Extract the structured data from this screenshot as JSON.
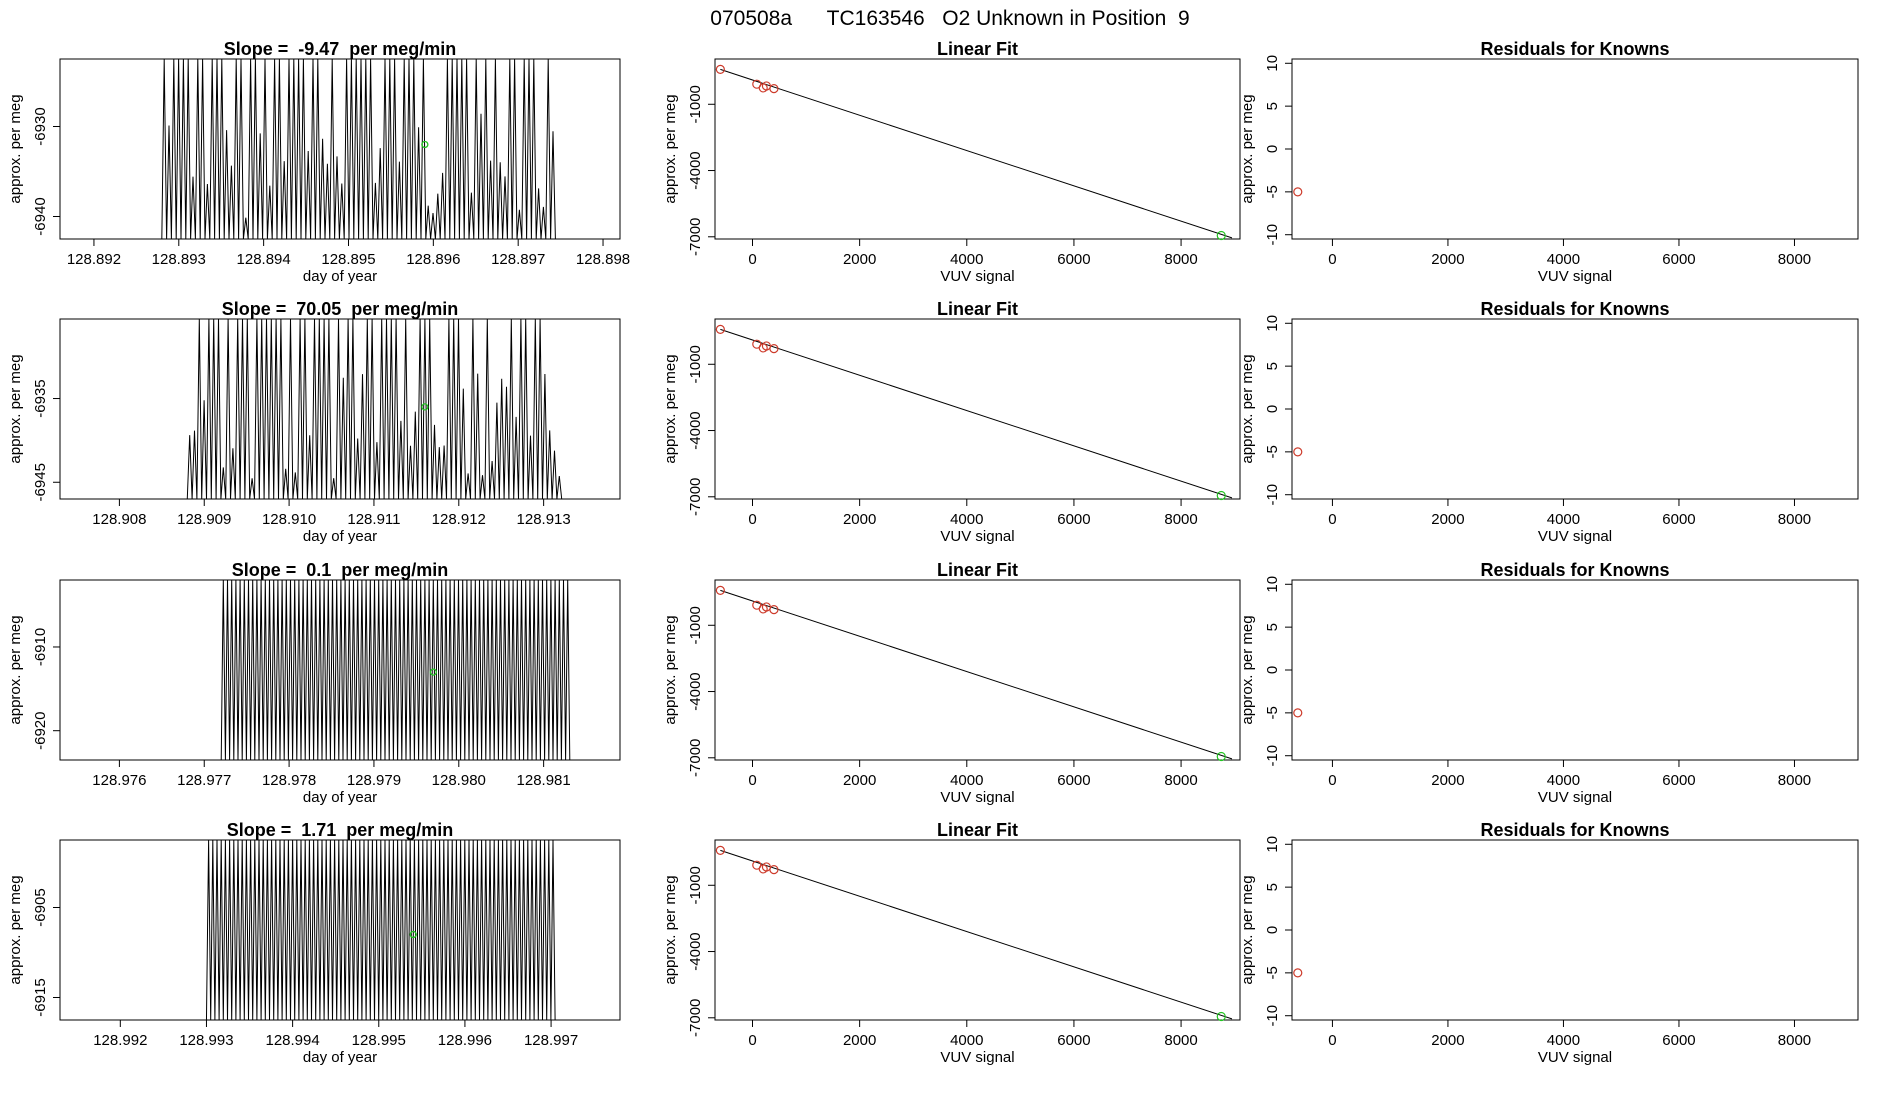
{
  "figure_title": "070508a      TC163546   O2 Unknown in Position  9",
  "colors": {
    "known": "#cd3b2b",
    "unknown": "#22c422",
    "line": "#000000",
    "axis": "#000000"
  },
  "chart_data": [
    {
      "id": "row1-timeseries",
      "type": "line",
      "row": 0,
      "col": 0,
      "title": "Slope =  -9.47  per meg/min",
      "xlabel": "day of year",
      "ylabel": "approx. per meg",
      "xlim": [
        128.8916,
        128.8982
      ],
      "ylim": [
        -6942.5,
        -6922.5
      ],
      "xticks": [
        "128.892",
        "128.893",
        "128.894",
        "128.895",
        "128.896",
        "128.897",
        "128.898"
      ],
      "yticks": [
        "-6930",
        "-6940"
      ],
      "trace": {
        "start": 128.8928,
        "end": 128.8974,
        "seed": 7,
        "density": 0.55,
        "high": -6922.5,
        "low": -6942.5
      },
      "marker": {
        "x": 128.8959,
        "y": -6932
      }
    },
    {
      "id": "row1-fit",
      "type": "scatter",
      "row": 0,
      "col": 1,
      "title": "Linear Fit",
      "xlabel": "VUV signal",
      "ylabel": "approx. per meg",
      "xlim": [
        -700,
        9100
      ],
      "ylim": [
        -7100,
        1050
      ],
      "xticks": [
        "0",
        "2000",
        "4000",
        "6000",
        "8000"
      ],
      "yticks": [
        "-1000",
        "-4000",
        "-7000"
      ],
      "knowns": [
        {
          "x": -600,
          "y": 580
        },
        {
          "x": 80,
          "y": -90
        },
        {
          "x": 200,
          "y": -260
        },
        {
          "x": 260,
          "y": -170
        },
        {
          "x": 400,
          "y": -290
        }
      ],
      "unknown": {
        "x": 8750,
        "y": -6940
      },
      "fit_line": {
        "x0": -600,
        "y0": 580,
        "x1": 8950,
        "y1": -7050
      }
    },
    {
      "id": "row1-resid",
      "type": "scatter",
      "row": 0,
      "col": 2,
      "title": "Residuals for Knowns",
      "xlabel": "VUV signal",
      "ylabel": "approx. per meg",
      "xlim": [
        -700,
        9100
      ],
      "ylim": [
        -10.5,
        10.5
      ],
      "xticks": [
        "0",
        "2000",
        "4000",
        "6000",
        "8000"
      ],
      "yticks": [
        "-10",
        "-5",
        "0",
        "5",
        "10"
      ],
      "points": [
        {
          "x": -600,
          "y": -5
        }
      ]
    },
    {
      "id": "row2-timeseries",
      "type": "line",
      "row": 1,
      "col": 0,
      "title": "Slope =  70.05  per meg/min",
      "xlabel": "day of year",
      "ylabel": "approx. per meg",
      "xlim": [
        128.9073,
        128.9139
      ],
      "ylim": [
        -6947,
        -6925.5
      ],
      "xticks": [
        "128.908",
        "128.909",
        "128.910",
        "128.911",
        "128.912",
        "128.913"
      ],
      "yticks": [
        "-6935",
        "-6945"
      ],
      "trace": {
        "start": 128.9088,
        "end": 128.9132,
        "seed": 13,
        "density": 0.6,
        "high": -6925.5,
        "low": -6947
      },
      "marker": {
        "x": 128.9116,
        "y": -6936
      }
    },
    {
      "id": "row2-fit",
      "type": "scatter",
      "row": 1,
      "col": 1,
      "title": "Linear Fit",
      "xlabel": "VUV signal",
      "ylabel": "approx. per meg",
      "xlim": [
        -700,
        9100
      ],
      "ylim": [
        -7100,
        1050
      ],
      "xticks": [
        "0",
        "2000",
        "4000",
        "6000",
        "8000"
      ],
      "yticks": [
        "-1000",
        "-4000",
        "-7000"
      ],
      "knowns": [
        {
          "x": -600,
          "y": 580
        },
        {
          "x": 80,
          "y": -90
        },
        {
          "x": 200,
          "y": -260
        },
        {
          "x": 260,
          "y": -170
        },
        {
          "x": 400,
          "y": -290
        }
      ],
      "unknown": {
        "x": 8750,
        "y": -6940
      },
      "fit_line": {
        "x0": -600,
        "y0": 580,
        "x1": 8950,
        "y1": -7050
      }
    },
    {
      "id": "row2-resid",
      "type": "scatter",
      "row": 1,
      "col": 2,
      "title": "Residuals for Knowns",
      "xlabel": "VUV signal",
      "ylabel": "approx. per meg",
      "xlim": [
        -700,
        9100
      ],
      "ylim": [
        -10.5,
        10.5
      ],
      "xticks": [
        "0",
        "2000",
        "4000",
        "6000",
        "8000"
      ],
      "yticks": [
        "-10",
        "-5",
        "0",
        "5",
        "10"
      ],
      "points": [
        {
          "x": -600,
          "y": -5
        }
      ]
    },
    {
      "id": "row3-timeseries",
      "type": "line",
      "row": 2,
      "col": 0,
      "title": "Slope =  0.1  per meg/min",
      "xlabel": "day of year",
      "ylabel": "approx. per meg",
      "xlim": [
        128.9753,
        128.9819
      ],
      "ylim": [
        -6923.5,
        -6902
      ],
      "xticks": [
        "128.976",
        "128.977",
        "128.978",
        "128.979",
        "128.980",
        "128.981"
      ],
      "yticks": [
        "-6910",
        "-6920"
      ],
      "trace": {
        "start": 128.9772,
        "end": 128.9813,
        "seed": 21,
        "density": 1.0,
        "high": -6902,
        "low": -6923.5
      },
      "marker": {
        "x": 128.9797,
        "y": -6913
      }
    },
    {
      "id": "row3-fit",
      "type": "scatter",
      "row": 2,
      "col": 1,
      "title": "Linear Fit",
      "xlabel": "VUV signal",
      "ylabel": "approx. per meg",
      "xlim": [
        -700,
        9100
      ],
      "ylim": [
        -7100,
        1050
      ],
      "xticks": [
        "0",
        "2000",
        "4000",
        "6000",
        "8000"
      ],
      "yticks": [
        "-1000",
        "-4000",
        "-7000"
      ],
      "knowns": [
        {
          "x": -600,
          "y": 580
        },
        {
          "x": 80,
          "y": -90
        },
        {
          "x": 200,
          "y": -260
        },
        {
          "x": 260,
          "y": -170
        },
        {
          "x": 400,
          "y": -290
        }
      ],
      "unknown": {
        "x": 8750,
        "y": -6940
      },
      "fit_line": {
        "x0": -600,
        "y0": 580,
        "x1": 8950,
        "y1": -7050
      }
    },
    {
      "id": "row3-resid",
      "type": "scatter",
      "row": 2,
      "col": 2,
      "title": "Residuals for Knowns",
      "xlabel": "VUV signal",
      "ylabel": "approx. per meg",
      "xlim": [
        -700,
        9100
      ],
      "ylim": [
        -10.5,
        10.5
      ],
      "xticks": [
        "0",
        "2000",
        "4000",
        "6000",
        "8000"
      ],
      "yticks": [
        "-10",
        "-5",
        "0",
        "5",
        "10"
      ],
      "points": [
        {
          "x": -600,
          "y": -5
        }
      ]
    },
    {
      "id": "row4-timeseries",
      "type": "line",
      "row": 3,
      "col": 0,
      "title": "Slope =  1.71  per meg/min",
      "xlabel": "day of year",
      "ylabel": "approx. per meg",
      "xlim": [
        128.9913,
        128.9978
      ],
      "ylim": [
        -6917.5,
        -6897.5
      ],
      "xticks": [
        "128.992",
        "128.993",
        "128.994",
        "128.995",
        "128.996",
        "128.997"
      ],
      "yticks": [
        "-6905",
        "-6915"
      ],
      "trace": {
        "start": 128.993,
        "end": 128.997,
        "seed": 33,
        "density": 1.0,
        "high": -6897.5,
        "low": -6917.5
      },
      "marker": {
        "x": 128.9954,
        "y": -6908
      }
    },
    {
      "id": "row4-fit",
      "type": "scatter",
      "row": 3,
      "col": 1,
      "title": "Linear Fit",
      "xlabel": "VUV signal",
      "ylabel": "approx. per meg",
      "xlim": [
        -700,
        9100
      ],
      "ylim": [
        -7100,
        1050
      ],
      "xticks": [
        "0",
        "2000",
        "4000",
        "6000",
        "8000"
      ],
      "yticks": [
        "-1000",
        "-4000",
        "-7000"
      ],
      "knowns": [
        {
          "x": -600,
          "y": 580
        },
        {
          "x": 80,
          "y": -90
        },
        {
          "x": 200,
          "y": -260
        },
        {
          "x": 260,
          "y": -170
        },
        {
          "x": 400,
          "y": -290
        }
      ],
      "unknown": {
        "x": 8750,
        "y": -6940
      },
      "fit_line": {
        "x0": -600,
        "y0": 580,
        "x1": 8950,
        "y1": -7050
      }
    },
    {
      "id": "row4-resid",
      "type": "scatter",
      "row": 3,
      "col": 2,
      "title": "Residuals for Knowns",
      "xlabel": "VUV signal",
      "ylabel": "approx. per meg",
      "xlim": [
        -700,
        9100
      ],
      "ylim": [
        -10.5,
        10.5
      ],
      "xticks": [
        "0",
        "2000",
        "4000",
        "6000",
        "8000"
      ],
      "yticks": [
        "-10",
        "-5",
        "0",
        "5",
        "10"
      ],
      "points": [
        {
          "x": -600,
          "y": -5
        }
      ]
    }
  ]
}
